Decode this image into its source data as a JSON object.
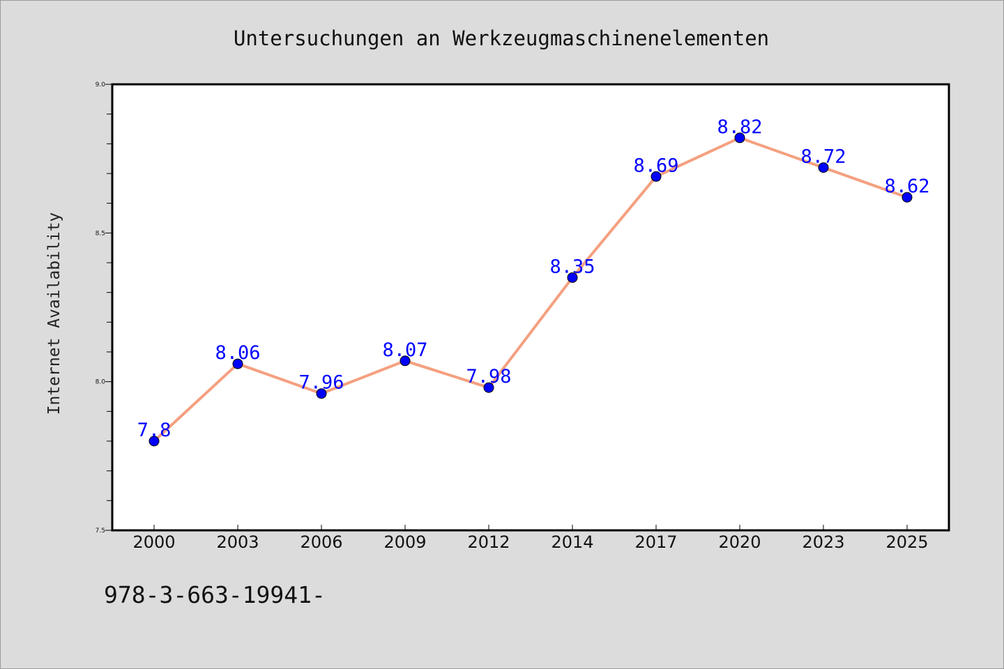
{
  "chart_data": {
    "type": "line",
    "title": "Untersuchungen an Werkzeugmaschinenelementen",
    "xlabel": "",
    "ylabel": "Internet Availability",
    "categories": [
      "2000",
      "2003",
      "2006",
      "2009",
      "2012",
      "2014",
      "2017",
      "2020",
      "2023",
      "2025"
    ],
    "series": [
      {
        "values": [
          7.8,
          8.06,
          7.96,
          8.07,
          7.98,
          8.35,
          8.69,
          8.82,
          8.72,
          8.62
        ],
        "labels": [
          "7.8",
          "8.06",
          "7.96",
          "8.07",
          "7.98",
          "8.35",
          "8.69",
          "8.82",
          "8.72",
          "8.62"
        ]
      }
    ],
    "ylim": [
      7.5,
      9.0
    ],
    "yticks": [
      "7.5",
      "8.0",
      "8.5",
      "9.0"
    ],
    "grid": false,
    "line_color": "#f4a080",
    "marker_color": "#0000ff",
    "label_color": "#0000ff",
    "background_color": "#dcdcdc",
    "plot_background_color": "#ffffff"
  },
  "footer": {
    "code": "978-3-663-19941-"
  }
}
